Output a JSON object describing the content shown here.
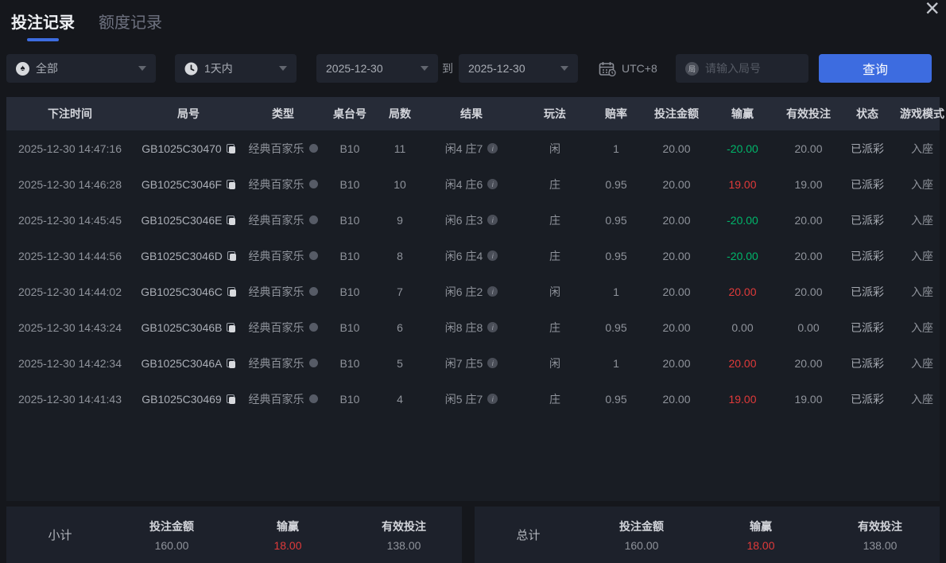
{
  "colors": {
    "accent": "#3d6ce0",
    "red": "#e03a3a",
    "green": "#00b56a"
  },
  "tabs": [
    {
      "label": "投注记录",
      "active": true
    },
    {
      "label": "额度记录",
      "active": false
    }
  ],
  "filters": {
    "game_type": {
      "value": "全部",
      "icon_char": "♠"
    },
    "time_range": {
      "value": "1天内"
    },
    "date_from": "2025-12-30",
    "to_label": "到",
    "date_to": "2025-12-30",
    "timezone": "UTC+8",
    "round_input": {
      "placeholder": "请输入局号",
      "icon_char": "局"
    },
    "query_button": "查询"
  },
  "table": {
    "columns": [
      "下注时间",
      "局号",
      "类型",
      "桌台号",
      "局数",
      "结果",
      "玩法",
      "赔率",
      "投注金额",
      "输赢",
      "有效投注",
      "状态",
      "游戏模式"
    ],
    "rows": [
      {
        "time": "2025-12-30 14:47:16",
        "round_id": "GB1025C30470",
        "type": "经典百家乐",
        "table_no": "B10",
        "rounds": "11",
        "result": "闲4 庄7",
        "play": "闲",
        "odds": "1",
        "bet": "20.00",
        "win_loss": "-20.00",
        "win_loss_color": "green",
        "valid_bet": "20.00",
        "status": "已派彩",
        "mode": "入座"
      },
      {
        "time": "2025-12-30 14:46:28",
        "round_id": "GB1025C3046F",
        "type": "经典百家乐",
        "table_no": "B10",
        "rounds": "10",
        "result": "闲4 庄6",
        "play": "庄",
        "odds": "0.95",
        "bet": "20.00",
        "win_loss": "19.00",
        "win_loss_color": "red",
        "valid_bet": "19.00",
        "status": "已派彩",
        "mode": "入座"
      },
      {
        "time": "2025-12-30 14:45:45",
        "round_id": "GB1025C3046E",
        "type": "经典百家乐",
        "table_no": "B10",
        "rounds": "9",
        "result": "闲6 庄3",
        "play": "庄",
        "odds": "0.95",
        "bet": "20.00",
        "win_loss": "-20.00",
        "win_loss_color": "green",
        "valid_bet": "20.00",
        "status": "已派彩",
        "mode": "入座"
      },
      {
        "time": "2025-12-30 14:44:56",
        "round_id": "GB1025C3046D",
        "type": "经典百家乐",
        "table_no": "B10",
        "rounds": "8",
        "result": "闲6 庄4",
        "play": "庄",
        "odds": "0.95",
        "bet": "20.00",
        "win_loss": "-20.00",
        "win_loss_color": "green",
        "valid_bet": "20.00",
        "status": "已派彩",
        "mode": "入座"
      },
      {
        "time": "2025-12-30 14:44:02",
        "round_id": "GB1025C3046C",
        "type": "经典百家乐",
        "table_no": "B10",
        "rounds": "7",
        "result": "闲6 庄2",
        "play": "闲",
        "odds": "1",
        "bet": "20.00",
        "win_loss": "20.00",
        "win_loss_color": "red",
        "valid_bet": "20.00",
        "status": "已派彩",
        "mode": "入座"
      },
      {
        "time": "2025-12-30 14:43:24",
        "round_id": "GB1025C3046B",
        "type": "经典百家乐",
        "table_no": "B10",
        "rounds": "6",
        "result": "闲8 庄8",
        "play": "庄",
        "odds": "0.95",
        "bet": "20.00",
        "win_loss": "0.00",
        "win_loss_color": "plain",
        "valid_bet": "0.00",
        "status": "已派彩",
        "mode": "入座"
      },
      {
        "time": "2025-12-30 14:42:34",
        "round_id": "GB1025C3046A",
        "type": "经典百家乐",
        "table_no": "B10",
        "rounds": "5",
        "result": "闲7 庄5",
        "play": "闲",
        "odds": "1",
        "bet": "20.00",
        "win_loss": "20.00",
        "win_loss_color": "red",
        "valid_bet": "20.00",
        "status": "已派彩",
        "mode": "入座"
      },
      {
        "time": "2025-12-30 14:41:43",
        "round_id": "GB1025C30469",
        "type": "经典百家乐",
        "table_no": "B10",
        "rounds": "4",
        "result": "闲5 庄7",
        "play": "庄",
        "odds": "0.95",
        "bet": "20.00",
        "win_loss": "19.00",
        "win_loss_color": "red",
        "valid_bet": "19.00",
        "status": "已派彩",
        "mode": "入座"
      }
    ]
  },
  "summary": {
    "subtotal": {
      "label": "小计",
      "bet_label": "投注金额",
      "bet": "160.00",
      "win_loss_label": "输赢",
      "win_loss": "18.00",
      "valid_label": "有效投注",
      "valid": "138.00"
    },
    "total": {
      "label": "总计",
      "bet_label": "投注金额",
      "bet": "160.00",
      "win_loss_label": "输赢",
      "win_loss": "18.00",
      "valid_label": "有效投注",
      "valid": "138.00"
    }
  }
}
